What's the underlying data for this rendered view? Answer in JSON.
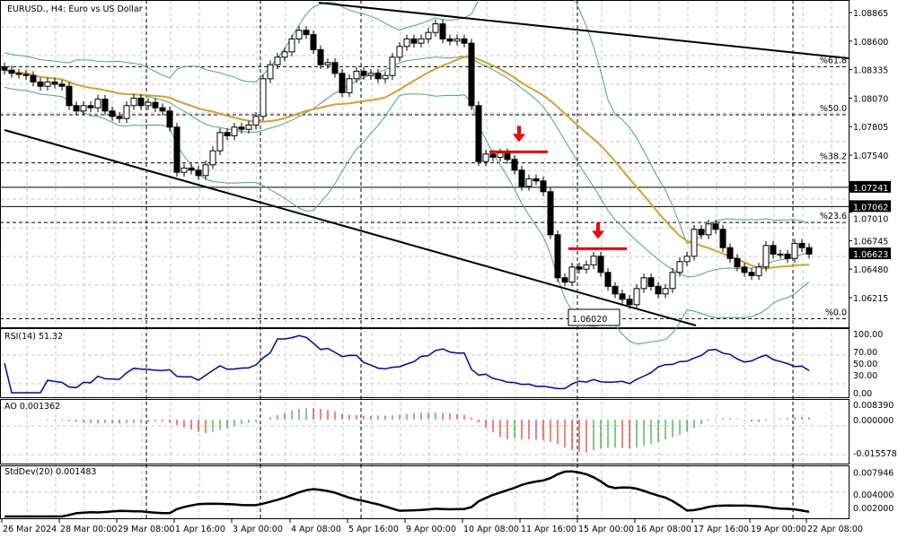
{
  "header": {
    "title": "EURUSD., H4:  Euro vs US Dollar"
  },
  "colors": {
    "bull_body": "#ffffff",
    "bear_body": "#000000",
    "ma": "#d9a126",
    "bands": "#3cb371",
    "signal": "#ff0000",
    "rsi": "#0000cc",
    "ao_up": "#00a000",
    "ao_down": "#ff0000",
    "stddev": "#000000"
  },
  "chart_data": [
    {
      "type": "candlestick",
      "title": "EURUSD., H4:  Euro vs US Dollar",
      "ylim": [
        1.0599,
        1.0893
      ],
      "y_ticks": [
        "1.08865",
        "1.08600",
        "1.08335",
        "1.08070",
        "1.07805",
        "1.07540",
        "1.07010",
        "1.06745",
        "1.06480",
        "1.06215"
      ],
      "price_labels": [
        "1.07241",
        "1.07062",
        "1.06623"
      ],
      "horizontal_levels": [
        1.07241,
        1.07062
      ],
      "x_tick_labels": [
        "26 Mar 2024",
        "28 Mar 00:00",
        "29 Mar 08:00",
        "1 Apr 16:00",
        "3 Apr 00:00",
        "4 Apr 08:00",
        "5 Apr 16:00",
        "9 Apr 00:00",
        "10 Apr 08:00",
        "11 Apr 16:00",
        "15 Apr 00:00",
        "16 Apr 08:00",
        "17 Apr 16:00",
        "19 Apr 00:00",
        "22 Apr 08:00"
      ],
      "closes": [
        1.0833,
        1.083,
        1.0829,
        1.0828,
        1.0822,
        1.0818,
        1.0822,
        1.082,
        1.0818,
        1.08,
        1.0795,
        1.08,
        1.0798,
        1.0806,
        1.0795,
        1.079,
        1.0788,
        1.08,
        1.0807,
        1.08,
        1.0803,
        1.0798,
        1.0795,
        1.078,
        1.0738,
        1.0742,
        1.074,
        1.0735,
        1.0745,
        1.0758,
        1.0775,
        1.0772,
        1.078,
        1.0778,
        1.0782,
        1.079,
        1.0825,
        1.0838,
        1.0845,
        1.085,
        1.0862,
        1.087,
        1.0866,
        1.0852,
        1.0838,
        1.084,
        1.083,
        1.0812,
        1.0825,
        1.0832,
        1.0828,
        1.083,
        1.0825,
        1.0828,
        1.0845,
        1.0855,
        1.0862,
        1.0858,
        1.0862,
        1.0868,
        1.0876,
        1.0862,
        1.086,
        1.0862,
        1.0858,
        1.08,
        1.0748,
        1.0755,
        1.0752,
        1.0756,
        1.075,
        1.074,
        1.0725,
        1.0732,
        1.073,
        1.072,
        1.068,
        1.064,
        1.0636,
        1.065,
        1.0648,
        1.0652,
        1.066,
        1.0645,
        1.0632,
        1.0625,
        1.062,
        1.0615,
        1.063,
        1.064,
        1.0632,
        1.0625,
        1.063,
        1.0645,
        1.0655,
        1.066,
        1.0685,
        1.068,
        1.069,
        1.0685,
        1.0668,
        1.0658,
        1.065,
        1.0645,
        1.0642,
        1.065,
        1.067,
        1.0662,
        1.0662,
        1.0658,
        1.0672,
        1.0668,
        1.0662
      ],
      "fibonacci": {
        "from": 1.0602,
        "to": 1.0981,
        "levels": [
          {
            "label": "%61.8",
            "ratio": 0.618
          },
          {
            "label": "%50.0",
            "ratio": 0.5
          },
          {
            "label": "%38.2",
            "ratio": 0.382
          },
          {
            "label": "%23.6",
            "ratio": 0.236
          },
          {
            "label": "%0.0",
            "ratio": 0
          }
        ]
      },
      "annotations": {
        "low_label": "1.06020",
        "resistance_marks": [
          {
            "price": 1.0757,
            "arrow": "down"
          },
          {
            "price": 1.0667,
            "arrow": "down"
          }
        ]
      }
    },
    {
      "type": "line",
      "name": "RSI(14) 51.32",
      "ylim": [
        0,
        100
      ],
      "y_ticks": [
        "100.00",
        "70.00",
        "50.00",
        "30.00",
        "0.00"
      ]
    },
    {
      "type": "histogram",
      "name": "AO 0.001362",
      "ylim": [
        -0.015578,
        0.00839
      ],
      "y_ticks": [
        "0.008390",
        "0.000000",
        "-0.015578"
      ]
    },
    {
      "type": "line",
      "name": "StdDev(20) 0.001483",
      "ylim": [
        0.0015,
        0.007946
      ],
      "y_ticks": [
        "0.007946",
        "0.004000",
        "0.002000"
      ]
    }
  ]
}
